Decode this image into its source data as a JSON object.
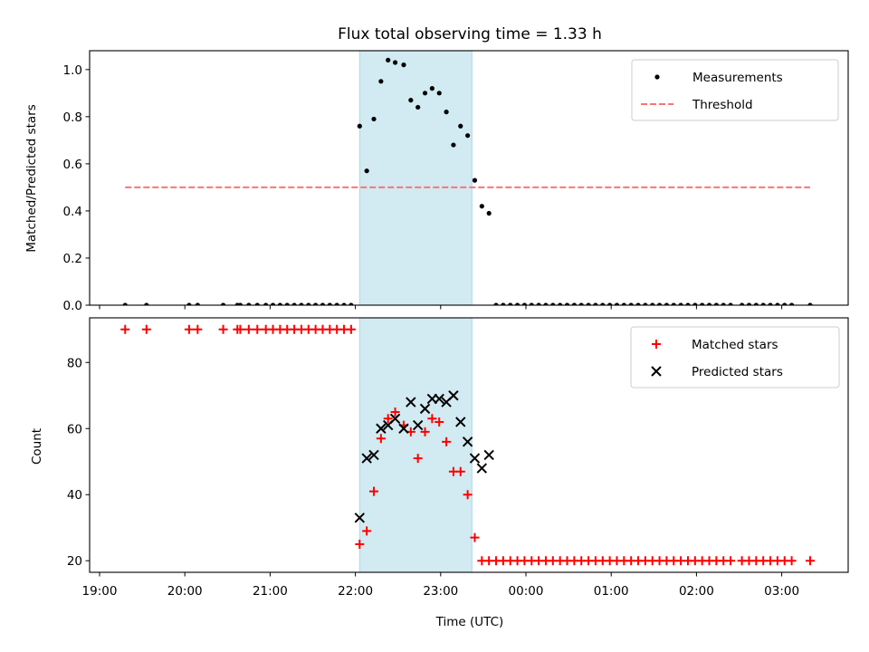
{
  "chart_data": [
    {
      "type": "scatter",
      "title": "Flux total observing time = 1.33 h",
      "xlabel": "",
      "ylabel": "Matched/Predicted stars",
      "ylim": [
        0,
        1.08
      ],
      "y_ticks": [
        "0.0",
        "0.2",
        "0.4",
        "0.6",
        "0.8",
        "1.0"
      ],
      "legend_position": "top-right",
      "highlight_span": {
        "start": "22:03",
        "end": "23:22",
        "color": "#add8e6"
      },
      "threshold": {
        "name": "Threshold",
        "value": 0.5,
        "x_start": "19:18",
        "x_end": "03:20",
        "color": "#ff7373",
        "style": "dashed"
      },
      "series": [
        {
          "name": "Measurements",
          "marker": "dot",
          "color": "#000000",
          "x": [
            "19:18",
            "19:33",
            "20:03",
            "20:09",
            "20:27",
            "20:37",
            "20:39",
            "20:45",
            "20:51",
            "20:57",
            "21:02",
            "21:07",
            "21:12",
            "21:17",
            "21:22",
            "21:27",
            "21:32",
            "21:37",
            "21:42",
            "21:47",
            "21:52",
            "21:57",
            "22:03",
            "22:08",
            "22:13",
            "22:18",
            "22:23",
            "22:28",
            "22:34",
            "22:39",
            "22:44",
            "22:49",
            "22:54",
            "22:59",
            "23:04",
            "23:09",
            "23:14",
            "23:19",
            "23:24",
            "23:29",
            "23:34",
            "23:39",
            "23:44",
            "23:49",
            "23:54",
            "23:59",
            "00:04",
            "00:09",
            "00:14",
            "00:19",
            "00:24",
            "00:29",
            "00:34",
            "00:39",
            "00:44",
            "00:49",
            "00:54",
            "00:59",
            "01:04",
            "01:09",
            "01:14",
            "01:19",
            "01:24",
            "01:29",
            "01:34",
            "01:39",
            "01:44",
            "01:49",
            "01:54",
            "01:59",
            "02:04",
            "02:09",
            "02:14",
            "02:19",
            "02:24",
            "02:32",
            "02:37",
            "02:42",
            "02:47",
            "02:52",
            "02:57",
            "03:02",
            "03:07",
            "03:20"
          ],
          "y": [
            0,
            0,
            0,
            0,
            0,
            0,
            0,
            0,
            0,
            0,
            0,
            0,
            0,
            0,
            0,
            0,
            0,
            0,
            0,
            0,
            0,
            0,
            0.76,
            0.57,
            0.79,
            0.95,
            1.04,
            1.03,
            1.02,
            0.87,
            0.84,
            0.9,
            0.92,
            0.9,
            0.82,
            0.68,
            0.76,
            0.72,
            0.53,
            0.42,
            0.39,
            0,
            0,
            0,
            0,
            0,
            0,
            0,
            0,
            0,
            0,
            0,
            0,
            0,
            0,
            0,
            0,
            0,
            0,
            0,
            0,
            0,
            0,
            0,
            0,
            0,
            0,
            0,
            0,
            0,
            0,
            0,
            0,
            0,
            0,
            0,
            0,
            0,
            0,
            0,
            0,
            0,
            0,
            0
          ]
        }
      ]
    },
    {
      "type": "scatter",
      "title": "",
      "xlabel": "Time (UTC)",
      "ylabel": "Count",
      "ylim": [
        16.5,
        93.5
      ],
      "y_ticks": [
        "20",
        "40",
        "60",
        "80"
      ],
      "x_ticks": [
        "19:00",
        "20:00",
        "21:00",
        "22:00",
        "23:00",
        "00:00",
        "01:00",
        "02:00",
        "03:00"
      ],
      "legend_position": "top-right",
      "highlight_span": {
        "start": "22:03",
        "end": "23:22",
        "color": "#add8e6"
      },
      "series": [
        {
          "name": "Matched stars",
          "marker": "plus",
          "color": "#ff0000",
          "x": [
            "19:18",
            "19:33",
            "20:03",
            "20:09",
            "20:27",
            "20:37",
            "20:39",
            "20:45",
            "20:51",
            "20:57",
            "21:02",
            "21:07",
            "21:12",
            "21:17",
            "21:22",
            "21:27",
            "21:32",
            "21:37",
            "21:42",
            "21:47",
            "21:52",
            "21:57",
            "22:03",
            "22:08",
            "22:13",
            "22:18",
            "22:23",
            "22:28",
            "22:34",
            "22:39",
            "22:44",
            "22:49",
            "22:54",
            "22:59",
            "23:04",
            "23:09",
            "23:14",
            "23:19",
            "23:24",
            "23:29",
            "23:34",
            "23:39",
            "23:44",
            "23:49",
            "23:54",
            "23:59",
            "00:04",
            "00:09",
            "00:14",
            "00:19",
            "00:24",
            "00:29",
            "00:34",
            "00:39",
            "00:44",
            "00:49",
            "00:54",
            "00:59",
            "01:04",
            "01:09",
            "01:14",
            "01:19",
            "01:24",
            "01:29",
            "01:34",
            "01:39",
            "01:44",
            "01:49",
            "01:54",
            "01:59",
            "02:04",
            "02:09",
            "02:14",
            "02:19",
            "02:24",
            "02:32",
            "02:37",
            "02:42",
            "02:47",
            "02:52",
            "02:57",
            "03:02",
            "03:07",
            "03:20"
          ],
          "y": [
            90,
            90,
            90,
            90,
            90,
            90,
            90,
            90,
            90,
            90,
            90,
            90,
            90,
            90,
            90,
            90,
            90,
            90,
            90,
            90,
            90,
            90,
            25,
            29,
            41,
            57,
            63,
            65,
            61,
            59,
            51,
            59,
            63,
            62,
            56,
            47,
            47,
            40,
            27,
            20,
            20,
            20,
            20,
            20,
            20,
            20,
            20,
            20,
            20,
            20,
            20,
            20,
            20,
            20,
            20,
            20,
            20,
            20,
            20,
            20,
            20,
            20,
            20,
            20,
            20,
            20,
            20,
            20,
            20,
            20,
            20,
            20,
            20,
            20,
            20,
            20,
            20,
            20,
            20,
            20,
            20,
            20,
            20,
            20
          ]
        },
        {
          "name": "Predicted stars",
          "marker": "x",
          "color": "#000000",
          "x": [
            "22:03",
            "22:08",
            "22:13",
            "22:18",
            "22:23",
            "22:28",
            "22:34",
            "22:39",
            "22:44",
            "22:49",
            "22:54",
            "22:59",
            "23:04",
            "23:09",
            "23:14",
            "23:19",
            "23:24",
            "23:29",
            "23:34"
          ],
          "y": [
            33,
            51,
            52,
            60,
            61,
            63,
            60,
            68,
            61,
            66,
            69,
            69,
            68,
            70,
            62,
            56,
            51,
            48,
            52
          ]
        }
      ]
    }
  ]
}
